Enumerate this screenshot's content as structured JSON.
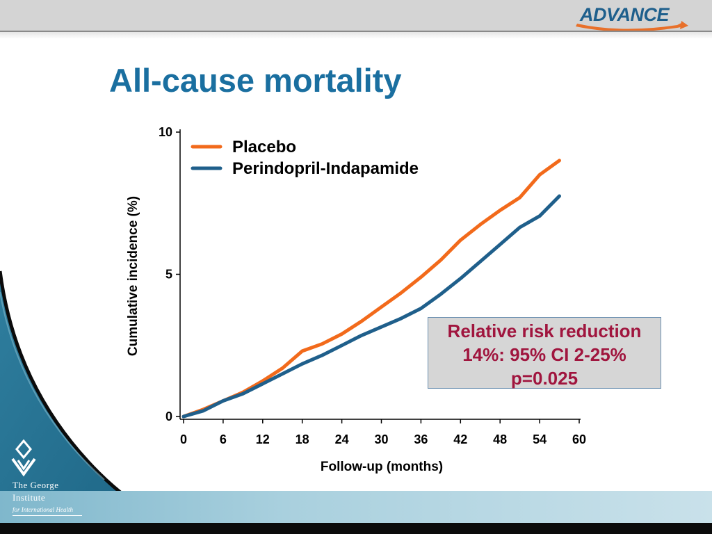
{
  "header": {
    "logo_text": "ADVANCE",
    "title": "All-cause mortality"
  },
  "footer": {
    "institute_line1": "The George",
    "institute_line2": "Institute",
    "institute_line3": "for International Health"
  },
  "colors": {
    "title": "#1a6fa0",
    "placebo": "#f26a1b",
    "treatment": "#1f5f8b",
    "annotation_text": "#a0153e",
    "annotation_bg": "#d6d6d6"
  },
  "annotation": {
    "line1": "Relative risk reduction",
    "line2": "14%: 95% CI 2-25%",
    "line3": "p=0.025"
  },
  "chart_data": {
    "type": "line",
    "title": "",
    "xlabel": "Follow-up (months)",
    "ylabel": "Cumulative incidence (%)",
    "xlim": [
      0,
      60
    ],
    "ylim": [
      0,
      10
    ],
    "xticks": [
      0,
      6,
      12,
      18,
      24,
      30,
      36,
      42,
      48,
      54,
      60
    ],
    "yticks": [
      0,
      5,
      10
    ],
    "grid": false,
    "legend_position": "top-left",
    "series": [
      {
        "name": "Placebo",
        "color": "#f26a1b",
        "x": [
          0,
          3,
          6,
          9,
          12,
          15,
          18,
          21,
          24,
          27,
          30,
          33,
          36,
          39,
          42,
          45,
          48,
          51,
          54,
          57
        ],
        "y": [
          0.0,
          0.25,
          0.55,
          0.85,
          1.25,
          1.7,
          2.3,
          2.55,
          2.9,
          3.35,
          3.85,
          4.35,
          4.9,
          5.5,
          6.2,
          6.75,
          7.25,
          7.7,
          8.5,
          9.0
        ]
      },
      {
        "name": "Perindopril-Indapamide",
        "color": "#1f5f8b",
        "x": [
          0,
          3,
          6,
          9,
          12,
          15,
          18,
          21,
          24,
          27,
          30,
          33,
          36,
          39,
          42,
          45,
          48,
          51,
          54,
          57
        ],
        "y": [
          0.0,
          0.2,
          0.55,
          0.8,
          1.15,
          1.5,
          1.85,
          2.15,
          2.5,
          2.85,
          3.15,
          3.45,
          3.8,
          4.3,
          4.85,
          5.45,
          6.05,
          6.65,
          7.05,
          7.75
        ]
      }
    ]
  }
}
